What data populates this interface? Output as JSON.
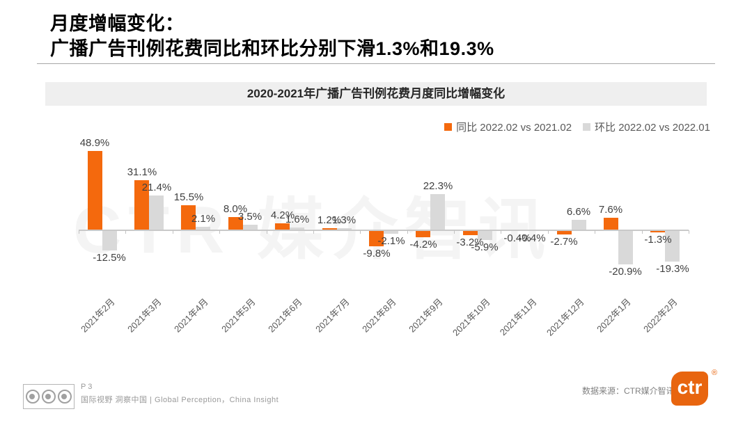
{
  "page": {
    "title_line1": "月度增幅变化：",
    "title_line2": "广播广告刊例花费同比和环比分别下滑1.3%和19.3%"
  },
  "chart": {
    "banner_title": "2020-2021年广播广告刊例花费月度同比增幅变化",
    "watermark": "CTR 媒介智讯"
  },
  "chart_data": {
    "type": "bar",
    "title": "2020-2021年广播广告刊例花费月度同比增幅变化",
    "categories": [
      "2021年2月",
      "2021年3月",
      "2021年4月",
      "2021年5月",
      "2021年6月",
      "2021年7月",
      "2021年8月",
      "2021年9月",
      "2021年10月",
      "2021年11月",
      "2021年12月",
      "2022年1月",
      "2022年2月"
    ],
    "series": [
      {
        "name": "同比 2022.02 vs 2021.02",
        "color": "#F4690D",
        "values": [
          48.9,
          31.1,
          15.5,
          8.0,
          4.2,
          1.2,
          -9.8,
          -4.2,
          -3.2,
          -0.4,
          -2.7,
          7.6,
          -1.3
        ]
      },
      {
        "name": "环比 2022.02 vs 2022.01",
        "color": "#D9D9D9",
        "values": [
          -12.5,
          21.4,
          2.1,
          3.5,
          1.6,
          1.3,
          -2.1,
          22.3,
          -5.9,
          -0.4,
          6.6,
          -20.9,
          -19.3
        ]
      }
    ],
    "value_suffix": "%",
    "value_decimals": 1,
    "ylim": [
      -25,
      55
    ],
    "grid": false,
    "legend_position": "top-right",
    "baseline": 0,
    "xlabel": "",
    "ylabel": ""
  },
  "footer": {
    "page_number": "P 3",
    "tagline": "国际视野  洞察中国 | Global Perception，China Insight",
    "source": "数据来源：CTR媒介智讯",
    "logo_text": "ctr",
    "registered_mark": "®"
  },
  "colors": {
    "accent_orange": "#F4690D",
    "bar_gray": "#D9D9D9",
    "axis": "#C9C9C9",
    "banner_bg": "#EFEFEF",
    "value_label": "#404040",
    "x_label": "#595959",
    "logo_orange": "#E8650F"
  }
}
